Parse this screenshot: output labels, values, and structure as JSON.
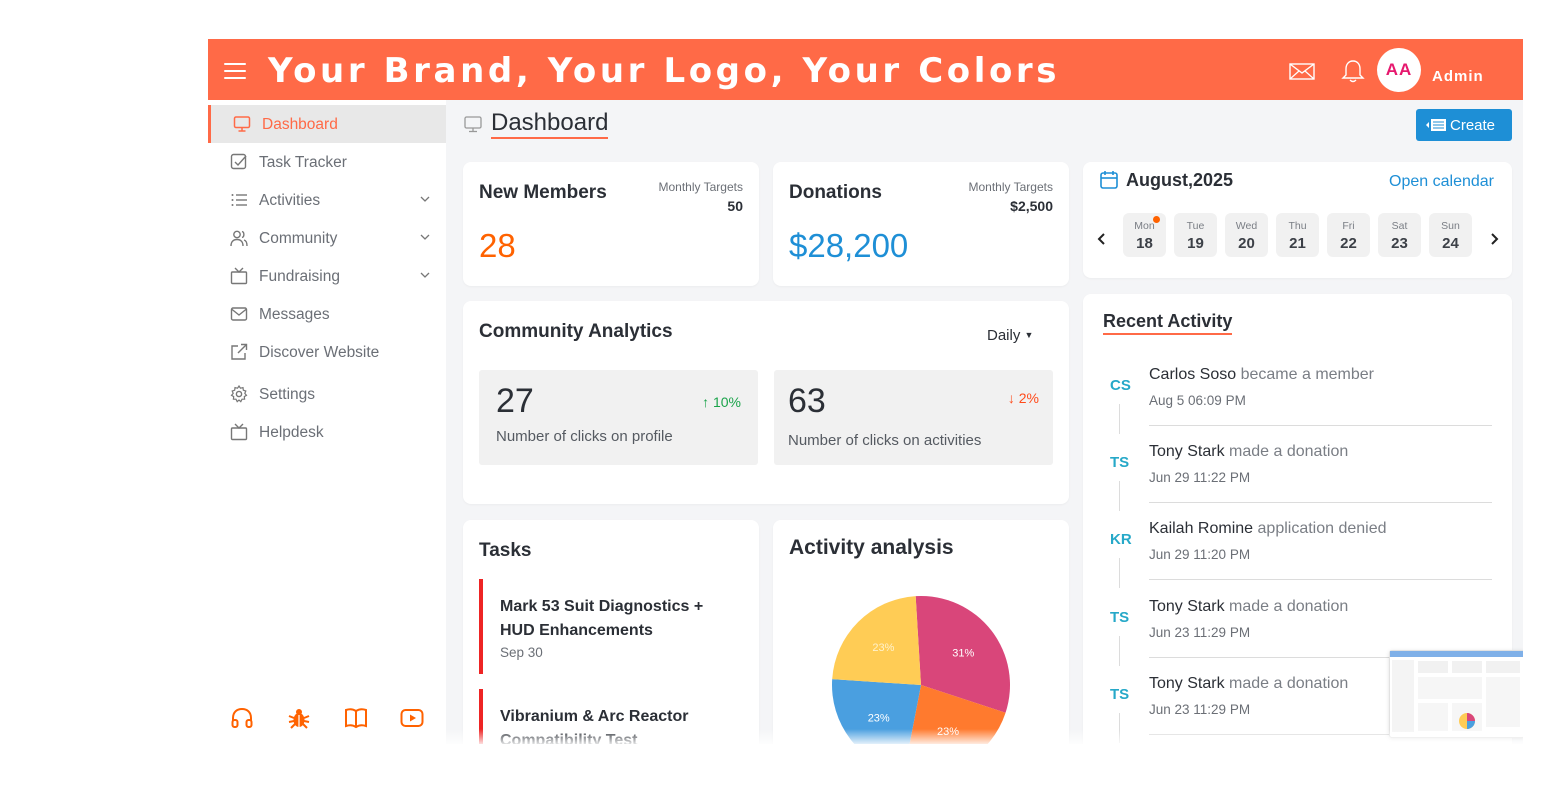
{
  "header": {
    "brand": "Your Brand, Your Logo, Your Colors",
    "icons": [
      "menu-icon",
      "mail-icon",
      "bell-icon"
    ],
    "avatar_initials": "AA",
    "user_name": "Admin",
    "color": "#ff6a47"
  },
  "sidebar": {
    "items": [
      {
        "label": "Dashboard",
        "icon": "monitor-icon",
        "active": true
      },
      {
        "label": "Task Tracker",
        "icon": "checkbox-icon"
      },
      {
        "label": "Activities",
        "icon": "list-icon",
        "expandable": true
      },
      {
        "label": "Community",
        "icon": "users-icon",
        "expandable": true
      },
      {
        "label": "Fundraising",
        "icon": "tv-icon",
        "expandable": true
      },
      {
        "label": "Messages",
        "icon": "mail-icon"
      },
      {
        "label": "Discover Website",
        "icon": "external-link-icon"
      },
      {
        "label": "Settings",
        "icon": "gear-icon"
      },
      {
        "label": "Helpdesk",
        "icon": "tv-icon"
      }
    ],
    "footer_icons": [
      "headset-icon",
      "bug-icon",
      "book-icon",
      "youtube-icon"
    ]
  },
  "page": {
    "title": "Dashboard",
    "create_label": "Create"
  },
  "new_members": {
    "title": "New Members",
    "target_label": "Monthly Targets",
    "target_value": "50",
    "value": "28",
    "value_color": "#ff6200"
  },
  "donations": {
    "title": "Donations",
    "target_label": "Monthly Targets",
    "target_value": "$2,500",
    "value": "$28,200",
    "value_color": "#1e8fd6"
  },
  "community_analytics": {
    "title": "Community Analytics",
    "period": "Daily",
    "metrics": [
      {
        "value": "27",
        "delta": "↑ 10%",
        "direction": "up",
        "label": "Number of clicks on profile"
      },
      {
        "value": "63",
        "delta": "↓ 2%",
        "direction": "down",
        "label": "Number of clicks on activities"
      }
    ]
  },
  "calendar": {
    "month": "August,2025",
    "open_label": "Open calendar",
    "days": [
      {
        "name": "Mon",
        "num": "18",
        "dot": true
      },
      {
        "name": "Tue",
        "num": "19"
      },
      {
        "name": "Wed",
        "num": "20"
      },
      {
        "name": "Thu",
        "num": "21"
      },
      {
        "name": "Fri",
        "num": "22"
      },
      {
        "name": "Sat",
        "num": "23"
      },
      {
        "name": "Sun",
        "num": "24"
      }
    ]
  },
  "recent_activity": {
    "title": "Recent Activity",
    "items": [
      {
        "initials": "CS",
        "name": "Carlos Soso",
        "action": "became a member",
        "date": "Aug 5 06:09 PM"
      },
      {
        "initials": "TS",
        "name": "Tony Stark",
        "action": "made a donation",
        "date": "Jun 29 11:22 PM"
      },
      {
        "initials": "KR",
        "name": "Kailah Romine",
        "action": "application denied",
        "date": "Jun 29 11:20 PM"
      },
      {
        "initials": "TS",
        "name": "Tony Stark",
        "action": "made a donation",
        "date": "Jun 23 11:29 PM"
      },
      {
        "initials": "TS",
        "name": "Tony Stark",
        "action": "made a donation",
        "date": "Jun 23 11:29 PM"
      }
    ]
  },
  "tasks": {
    "title": "Tasks",
    "items": [
      {
        "title": "Mark 53 Suit Diagnostics + HUD Enhancements",
        "date": "Sep 30"
      },
      {
        "title": "Vibranium & Arc Reactor Compatibility Test",
        "date": ""
      }
    ]
  },
  "activity_analysis": {
    "title": "Activity analysis"
  },
  "chart_data": {
    "type": "pie",
    "title": "",
    "slices": [
      {
        "label": "31%",
        "value": 31,
        "color": "#d9467a"
      },
      {
        "label": "23%",
        "value": 23,
        "color": "#ff7a2e"
      },
      {
        "label": "23%",
        "value": 23,
        "color": "#4a9fe0"
      },
      {
        "label": "23%",
        "value": 23,
        "color": "#ffcc55"
      }
    ]
  }
}
